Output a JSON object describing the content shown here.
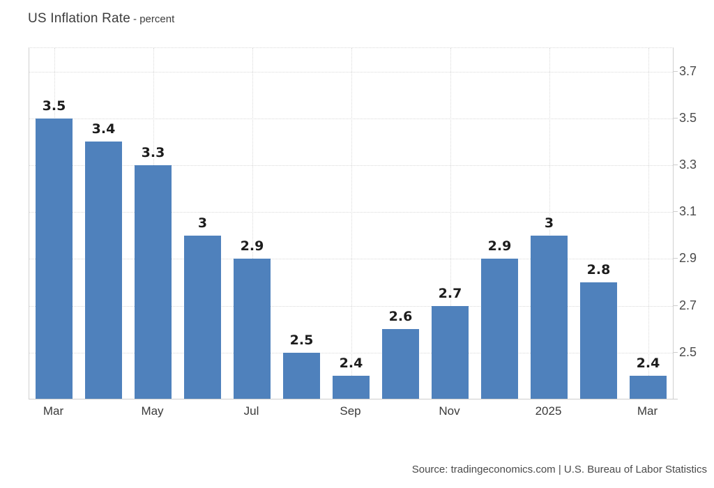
{
  "header": {
    "title": "US Inflation Rate",
    "subtitle": "- percent"
  },
  "footer": {
    "source": "Source: tradingeconomics.com | U.S. Bureau of Labor Statistics"
  },
  "chart_data": {
    "type": "bar",
    "title": "US Inflation Rate",
    "unit": "percent",
    "values": [
      3.5,
      3.4,
      3.3,
      3,
      2.9,
      2.5,
      2.4,
      2.6,
      2.7,
      2.9,
      3,
      2.8,
      2.4
    ],
    "bar_labels": [
      "3.5",
      "3.4",
      "3.3",
      "3",
      "2.9",
      "2.5",
      "2.4",
      "2.6",
      "2.7",
      "2.9",
      "3",
      "2.8",
      "2.4"
    ],
    "x_ticks": [
      {
        "index": 0,
        "label": "Mar"
      },
      {
        "index": 2,
        "label": "May"
      },
      {
        "index": 4,
        "label": "Jul"
      },
      {
        "index": 6,
        "label": "Sep"
      },
      {
        "index": 8,
        "label": "Nov"
      },
      {
        "index": 10,
        "label": "2025"
      },
      {
        "index": 12,
        "label": "Mar"
      }
    ],
    "y_ticks": [
      "2.5",
      "2.7",
      "2.9",
      "3.1",
      "3.3",
      "3.5",
      "3.7"
    ],
    "ylim": [
      2.3,
      3.8
    ],
    "grid": "dotted",
    "legend": "none",
    "y_axis_position": "right",
    "colors": {
      "bar": "#4f81bc",
      "grid": "#d9d9d9",
      "axis": "#cccccc",
      "bar_label": "#1c1c1c",
      "text": "#3d3d3d"
    }
  }
}
